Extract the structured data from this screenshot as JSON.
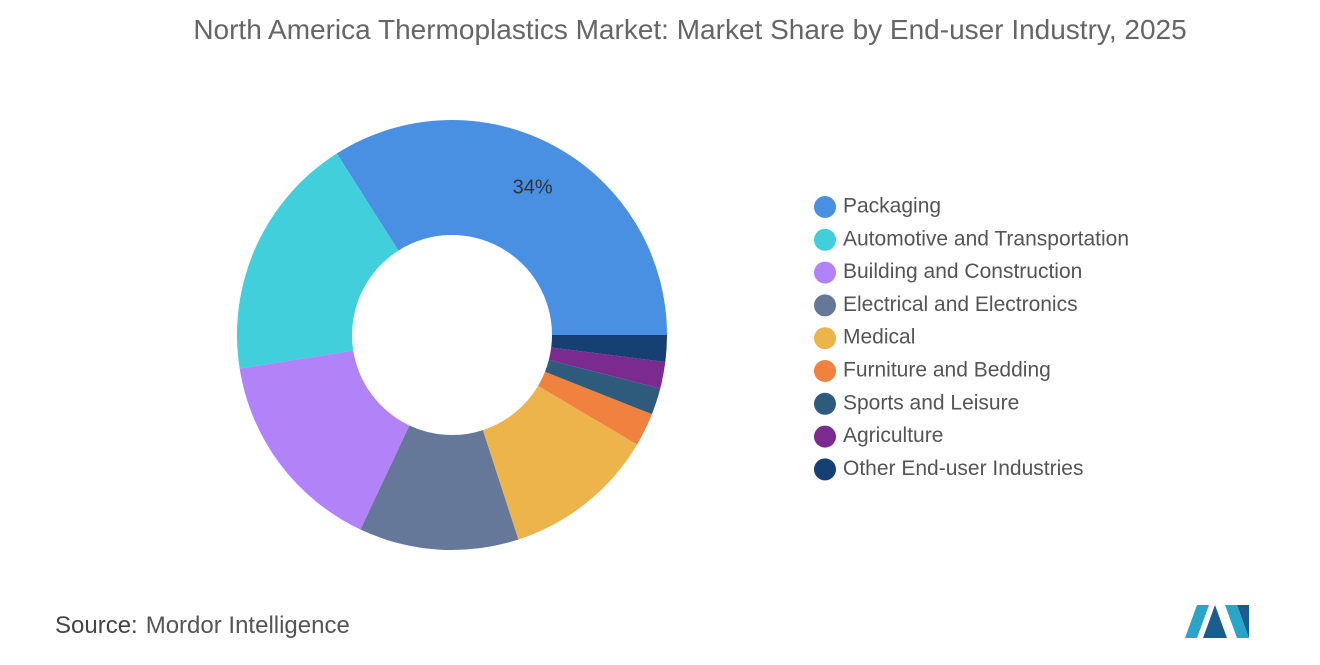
{
  "chart_data": {
    "type": "donut",
    "title": "North America Thermoplastics Market: Market Share by End-user Industry, 2025",
    "categories": [
      "Packaging",
      "Automotive and Transportation",
      "Building and Construction",
      "Electrical and Electronics",
      "Medical",
      "Furniture and Bedding",
      "Sports and Leisure",
      "Agriculture",
      "Other End-user Industries"
    ],
    "values": [
      34,
      18.5,
      15.5,
      12,
      11.5,
      2.5,
      2,
      2,
      2
    ],
    "value_labels": [
      "34%",
      null,
      null,
      null,
      null,
      null,
      null,
      null,
      null
    ],
    "colors": [
      "#4a90e2",
      "#40cfdb",
      "#b283f8",
      "#66789a",
      "#ecb44a",
      "#f0813e",
      "#2e5b7c",
      "#7b2a8f",
      "#163f73"
    ],
    "source": {
      "label": "Source:",
      "text": "Mordor Intelligence"
    }
  }
}
